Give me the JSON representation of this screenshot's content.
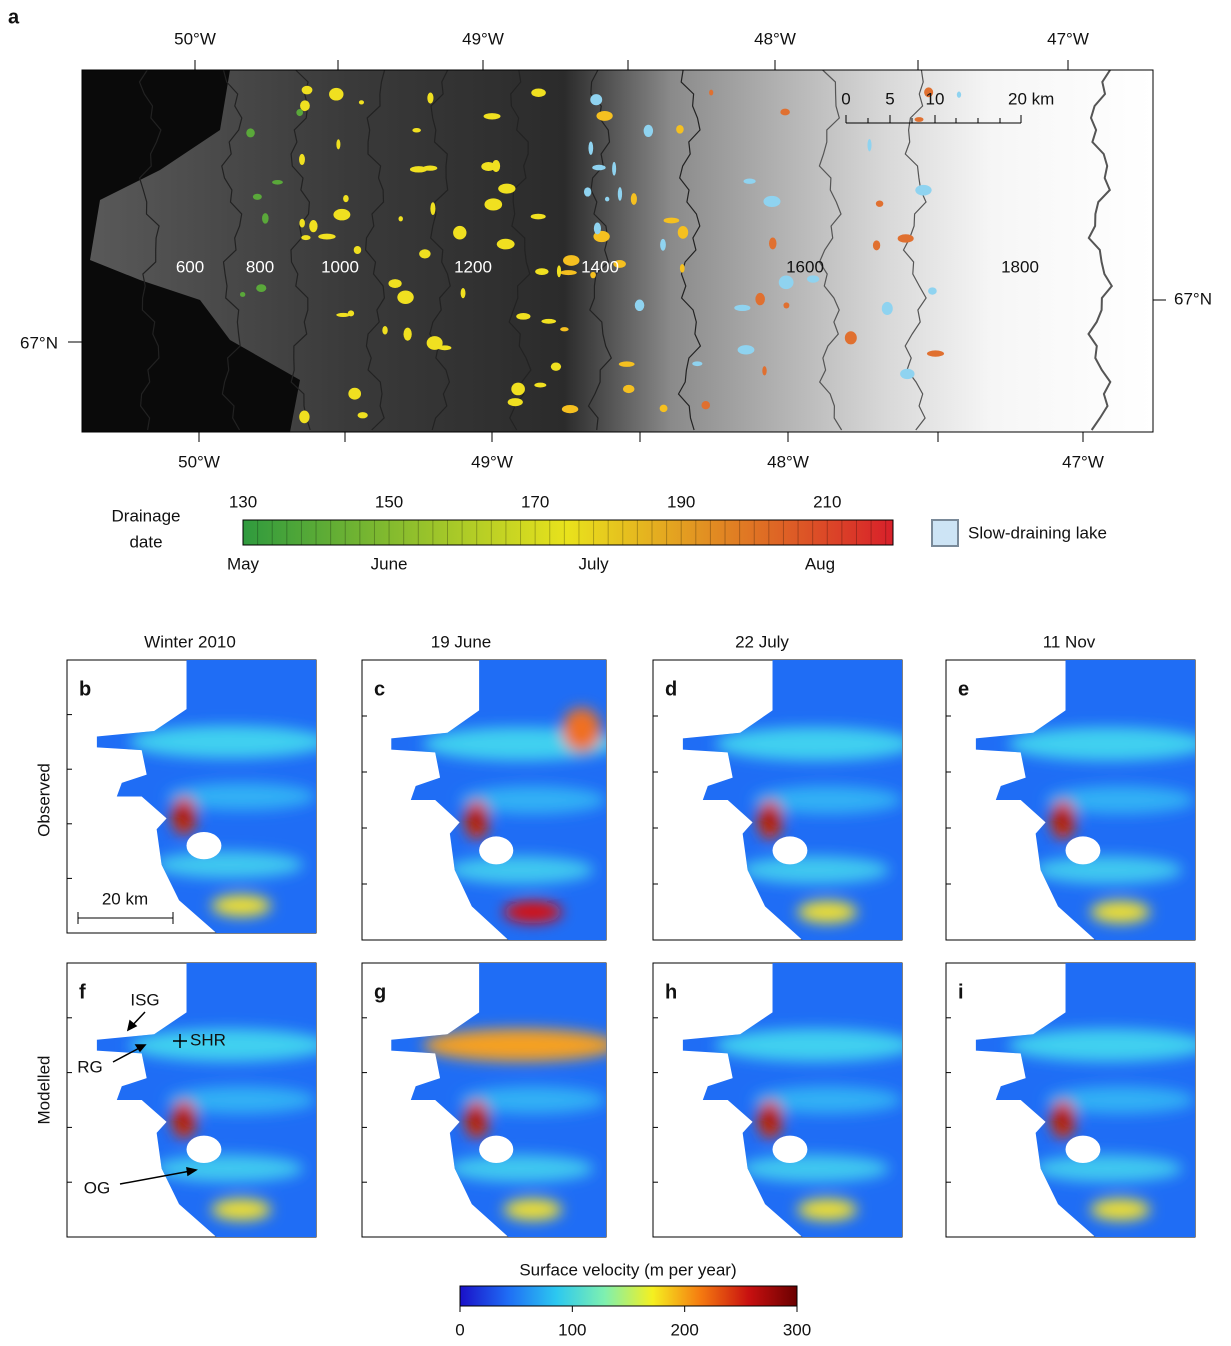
{
  "figure": {
    "panel_a": {
      "label": "a",
      "lon_top": [
        "50°W",
        "49°W",
        "48°W",
        "47°W"
      ],
      "lon_bottom": [
        "50°W",
        "49°W",
        "48°W",
        "47°W"
      ],
      "lat": [
        "67°N",
        "67°N"
      ],
      "contours": [
        "600",
        "800",
        "1000",
        "1200",
        "1400",
        "1600",
        "1800"
      ],
      "scale_bar": {
        "ticks": [
          "0",
          "5",
          "10"
        ],
        "end": "20 km"
      }
    },
    "drainage_colorbar": {
      "title": [
        "Drainage",
        "date"
      ],
      "lim": [
        130,
        219
      ],
      "ticks": [
        130,
        150,
        170,
        190,
        210
      ],
      "month_ticks": [
        {
          "value": 130,
          "label": "May"
        },
        {
          "value": 150,
          "label": "June"
        },
        {
          "value": 178,
          "label": "July"
        },
        {
          "value": 209,
          "label": "Aug"
        }
      ],
      "colors": [
        "#2f9a3e",
        "#e9e21c",
        "#d8202a"
      ]
    },
    "legend": {
      "slow_lake": "Slow-draining lake"
    },
    "columns": [
      "Winter 2010",
      "19 June",
      "22 July",
      "11 Nov"
    ],
    "rows": [
      "Observed",
      "Modelled"
    ],
    "panels": [
      [
        "b",
        "c",
        "d",
        "e"
      ],
      [
        "f",
        "g",
        "h",
        "i"
      ]
    ],
    "scale_label": "20 km",
    "annotations": {
      "isg": "ISG",
      "shr": "SHR",
      "rg": "RG",
      "og": "OG"
    },
    "velocity_colorbar": {
      "title": "Surface velocity (m per year)",
      "lim": [
        0,
        300
      ],
      "ticks": [
        0,
        100,
        200,
        300
      ],
      "colors": [
        "#1a10c8",
        "#1f6df5",
        "#2cc8f0",
        "#7ef0b0",
        "#f5f020",
        "#f57a10",
        "#c81010",
        "#6a0000"
      ]
    }
  }
}
